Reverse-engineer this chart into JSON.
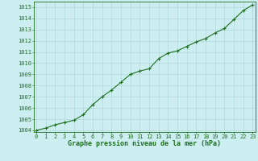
{
  "x": [
    0,
    1,
    2,
    3,
    4,
    5,
    6,
    7,
    8,
    9,
    10,
    11,
    12,
    13,
    14,
    15,
    16,
    17,
    18,
    19,
    20,
    21,
    22,
    23
  ],
  "y": [
    1004.0,
    1004.2,
    1004.5,
    1004.7,
    1004.9,
    1005.4,
    1006.3,
    1007.0,
    1007.6,
    1008.3,
    1009.0,
    1009.3,
    1009.5,
    1010.4,
    1010.9,
    1011.1,
    1011.5,
    1011.9,
    1012.2,
    1012.7,
    1013.1,
    1013.9,
    1014.7,
    1015.2
  ],
  "line_color": "#1e6e1e",
  "marker_color": "#1e6e1e",
  "bg_color": "#cceef0",
  "grid_color": "#b0d8dc",
  "xlabel": "Graphe pression niveau de la mer (hPa)",
  "xlabel_color": "#1e6e1e",
  "tick_color": "#1e6e1e",
  "ylim_min": 1004,
  "ylim_max": 1016,
  "xlim_min": 0,
  "xlim_max": 23,
  "yticks": [
    1004,
    1005,
    1006,
    1007,
    1008,
    1009,
    1010,
    1011,
    1012,
    1013,
    1014,
    1015
  ],
  "xticks": [
    0,
    1,
    2,
    3,
    4,
    5,
    6,
    7,
    8,
    9,
    10,
    11,
    12,
    13,
    14,
    15,
    16,
    17,
    18,
    19,
    20,
    21,
    22,
    23
  ],
  "xtick_labels": [
    "0",
    "1",
    "2",
    "3",
    "4",
    "5",
    "6",
    "7",
    "8",
    "9",
    "10",
    "11",
    "12",
    "13",
    "14",
    "15",
    "16",
    "17",
    "18",
    "19",
    "20",
    "21",
    "22",
    "23"
  ],
  "ytick_labels": [
    "1004",
    "1005",
    "1006",
    "1007",
    "1008",
    "1009",
    "1010",
    "1011",
    "1012",
    "1013",
    "1014",
    "1015"
  ],
  "line_width": 0.8,
  "marker_size": 3.0,
  "marker_style": "+"
}
